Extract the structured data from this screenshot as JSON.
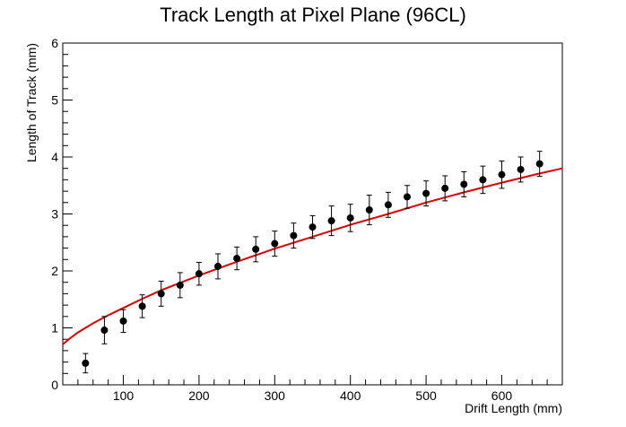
{
  "chart_data": {
    "type": "scatter",
    "title": "Track Length at Pixel Plane (96CL)",
    "xlabel": "Drift Length (mm)",
    "ylabel": "Length of Track (mm)",
    "xlim": [
      20,
      680
    ],
    "ylim": [
      0,
      6
    ],
    "x_ticks": [
      100,
      200,
      300,
      400,
      500,
      600
    ],
    "y_ticks": [
      0,
      1,
      2,
      3,
      4,
      5,
      6
    ],
    "grid": false,
    "legend": "none",
    "series": [
      {
        "kind": "points-with-error-bars",
        "color": "#000000",
        "x": [
          50,
          75,
          100,
          125,
          150,
          175,
          200,
          225,
          250,
          275,
          300,
          325,
          350,
          375,
          400,
          425,
          450,
          475,
          500,
          525,
          550,
          575,
          600,
          625,
          650
        ],
        "y": [
          0.38,
          0.96,
          1.12,
          1.38,
          1.6,
          1.75,
          1.95,
          2.08,
          2.22,
          2.38,
          2.48,
          2.62,
          2.77,
          2.88,
          2.93,
          3.07,
          3.16,
          3.3,
          3.36,
          3.45,
          3.52,
          3.6,
          3.69,
          3.78,
          3.88
        ],
        "yerr": [
          0.17,
          0.24,
          0.2,
          0.2,
          0.22,
          0.22,
          0.2,
          0.22,
          0.2,
          0.22,
          0.22,
          0.22,
          0.2,
          0.26,
          0.24,
          0.26,
          0.22,
          0.2,
          0.22,
          0.22,
          0.22,
          0.24,
          0.24,
          0.22,
          0.22
        ]
      },
      {
        "kind": "line",
        "color": "#dd0000",
        "x": [
          20,
          30,
          40,
          50,
          60,
          80,
          100,
          125,
          150,
          175,
          200,
          250,
          300,
          350,
          400,
          450,
          500,
          550,
          600,
          650,
          680
        ],
        "y": [
          0.71,
          0.82,
          0.92,
          1.0,
          1.08,
          1.22,
          1.35,
          1.51,
          1.66,
          1.79,
          1.92,
          2.16,
          2.39,
          2.6,
          2.81,
          3.0,
          3.2,
          3.38,
          3.55,
          3.71,
          3.8
        ]
      }
    ]
  }
}
